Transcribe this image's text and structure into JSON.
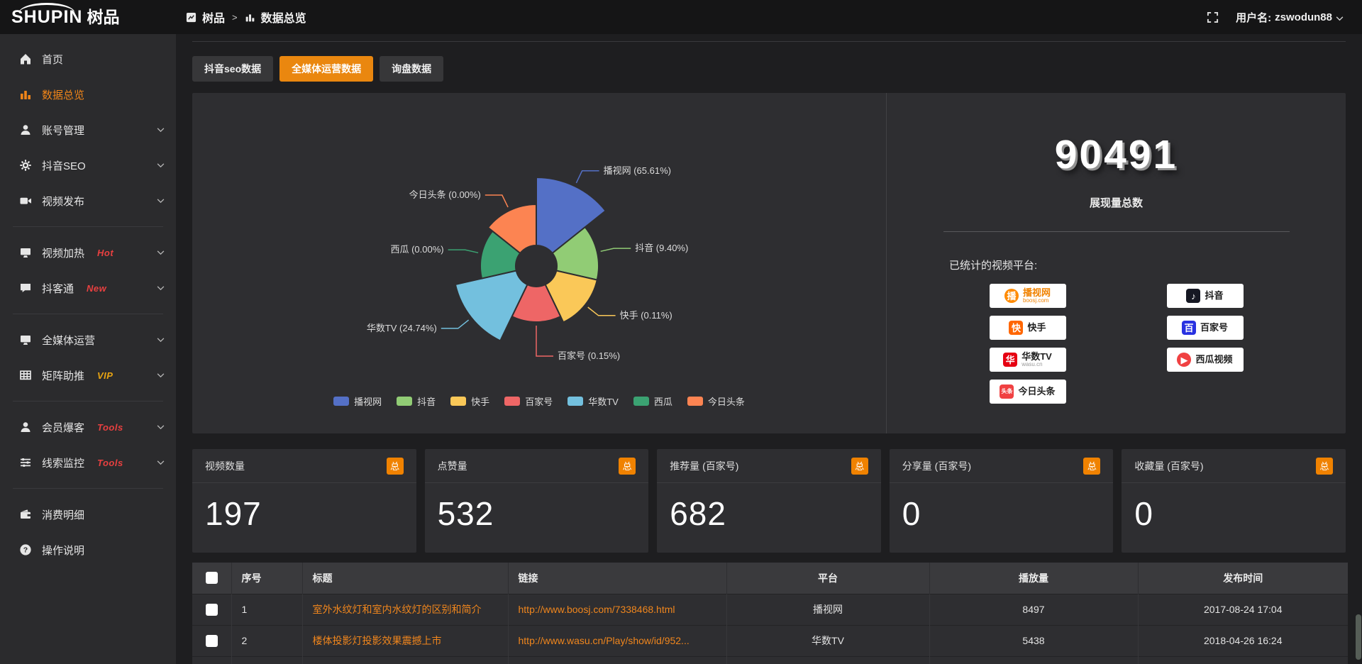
{
  "colors": {
    "accent": "#ea870f",
    "link_orange": "#f0861d",
    "badge_red": "#e84040",
    "badge_gold": "#e8a412",
    "panel_bg": "#2e2e31"
  },
  "topbar": {
    "logo": {
      "latin": "SHUPIN",
      "cn": "树品"
    },
    "breadcrumb": {
      "root": "树品",
      "separator": ">",
      "current": "数据总览"
    },
    "user": {
      "prefix": "用户名:",
      "name": "zswodun88"
    }
  },
  "sidebar": {
    "items": [
      {
        "key": "home",
        "icon": "home",
        "label": "首页",
        "active": false,
        "chevron": false,
        "badge": "",
        "badge_style": "",
        "divider_after": false
      },
      {
        "key": "data-overview",
        "icon": "chart",
        "label": "数据总览",
        "active": true,
        "chevron": false,
        "badge": "",
        "badge_style": "",
        "divider_after": false
      },
      {
        "key": "account-manage",
        "icon": "user",
        "label": "账号管理",
        "active": false,
        "chevron": true,
        "badge": "",
        "badge_style": "",
        "divider_after": false
      },
      {
        "key": "douyin-seo",
        "icon": "gear",
        "label": "抖音SEO",
        "active": false,
        "chevron": true,
        "badge": "",
        "badge_style": "",
        "divider_after": false
      },
      {
        "key": "video-publish",
        "icon": "video",
        "label": "视频发布",
        "active": false,
        "chevron": true,
        "badge": "",
        "badge_style": "",
        "divider_after": true
      },
      {
        "key": "video-boost",
        "icon": "monitor",
        "label": "视频加热",
        "active": false,
        "chevron": true,
        "badge": "Hot",
        "badge_style": "red",
        "divider_after": false
      },
      {
        "key": "douketong",
        "icon": "chat",
        "label": "抖客通",
        "active": false,
        "chevron": true,
        "badge": "New",
        "badge_style": "red",
        "divider_after": true
      },
      {
        "key": "omni-media",
        "icon": "monitor",
        "label": "全媒体运营",
        "active": false,
        "chevron": true,
        "badge": "",
        "badge_style": "",
        "divider_after": false
      },
      {
        "key": "matrix-assist",
        "icon": "grid",
        "label": "矩阵助推",
        "active": false,
        "chevron": true,
        "badge": "VIP",
        "badge_style": "gold",
        "divider_after": true
      },
      {
        "key": "member-baoke",
        "icon": "user",
        "label": "会员爆客",
        "active": false,
        "chevron": true,
        "badge": "Tools",
        "badge_style": "red",
        "divider_after": false
      },
      {
        "key": "lead-monitor",
        "icon": "sliders",
        "label": "线索监控",
        "active": false,
        "chevron": true,
        "badge": "Tools",
        "badge_style": "red",
        "divider_after": true
      },
      {
        "key": "consume-detail",
        "icon": "wallet",
        "label": "消费明细",
        "active": false,
        "chevron": false,
        "badge": "",
        "badge_style": "",
        "divider_after": false
      },
      {
        "key": "operation-guide",
        "icon": "question",
        "label": "操作说明",
        "active": false,
        "chevron": false,
        "badge": "",
        "badge_style": "",
        "divider_after": false
      }
    ]
  },
  "tabs": [
    {
      "key": "douyin-seo-data",
      "label": "抖音seo数据",
      "active": false
    },
    {
      "key": "omni-media-data",
      "label": "全媒体运营数据",
      "active": true
    },
    {
      "key": "inquiry-data",
      "label": "询盘数据",
      "active": false
    }
  ],
  "chart_data": {
    "type": "pie",
    "variant": "nightingale-rose",
    "unit": "%",
    "label_format": "{name} ({value}%)",
    "legend_position": "bottom",
    "inner_radius_px": 29,
    "items": [
      {
        "name": "播视网",
        "value": 65.61,
        "color": "#5470c6",
        "radius_px": 125
      },
      {
        "name": "抖音",
        "value": 9.4,
        "color": "#91cc75",
        "radius_px": 88
      },
      {
        "name": "快手",
        "value": 0.11,
        "color": "#fac858",
        "radius_px": 88
      },
      {
        "name": "百家号",
        "value": 0.15,
        "color": "#ee6666",
        "radius_px": 79
      },
      {
        "name": "华数TV",
        "value": 24.74,
        "color": "#73c0de",
        "radius_px": 117
      },
      {
        "name": "西瓜",
        "value": 0.0,
        "color": "#3ba272",
        "radius_px": 79
      },
      {
        "name": "今日头条",
        "value": 0.0,
        "color": "#fc8452",
        "radius_px": 87
      }
    ]
  },
  "summary": {
    "value": "90491",
    "label": "展现量总数",
    "platforms_title": "已统计的视频平台:",
    "platforms": [
      {
        "key": "boosj",
        "name": "播视网",
        "name_color": "#f08200",
        "sub": "boosj.com",
        "sub_color": "#f08200",
        "glyph": "播",
        "icon_bg": "#ff8a00",
        "icon_shape": "circle"
      },
      {
        "key": "douyin",
        "name": "抖音",
        "name_color": "#161616",
        "sub": "",
        "sub_color": "",
        "glyph": "♪",
        "icon_bg": "#161823",
        "icon_shape": "square"
      },
      {
        "key": "kuaishou",
        "name": "快手",
        "name_color": "#222222",
        "sub": "",
        "sub_color": "",
        "glyph": "快",
        "icon_bg": "#ff6600",
        "icon_shape": "square"
      },
      {
        "key": "baijiahao",
        "name": "百家号",
        "name_color": "#222222",
        "sub": "",
        "sub_color": "",
        "glyph": "百",
        "icon_bg": "#2932e1",
        "icon_shape": "square"
      },
      {
        "key": "wasu",
        "name": "华数TV",
        "name_color": "#222222",
        "sub": "wasu.cn",
        "sub_color": "#999999",
        "glyph": "华",
        "icon_bg": "#e60012",
        "icon_shape": "square"
      },
      {
        "key": "xigua",
        "name": "西瓜视频",
        "name_color": "#222222",
        "sub": "",
        "sub_color": "",
        "glyph": "▶",
        "icon_bg": "#f04142",
        "icon_shape": "circle"
      },
      {
        "key": "toutiao",
        "name": "今日头条",
        "name_color": "#222222",
        "sub": "",
        "sub_color": "",
        "glyph": "头条",
        "icon_bg": "#f04142",
        "icon_shape": "square"
      }
    ]
  },
  "stats_cards": [
    {
      "key": "video-count",
      "title": "视频数量",
      "badge": "总",
      "value": "197"
    },
    {
      "key": "like-count",
      "title": "点赞量",
      "badge": "总",
      "value": "532"
    },
    {
      "key": "recommend-count",
      "title": "推荐量 (百家号)",
      "badge": "总",
      "value": "682"
    },
    {
      "key": "share-count",
      "title": "分享量 (百家号)",
      "badge": "总",
      "value": "0"
    },
    {
      "key": "favorite-count",
      "title": "收藏量 (百家号)",
      "badge": "总",
      "value": "0"
    }
  ],
  "table": {
    "columns": [
      {
        "key": "checkbox",
        "label": ""
      },
      {
        "key": "index",
        "label": "序号"
      },
      {
        "key": "title",
        "label": "标题"
      },
      {
        "key": "link",
        "label": "链接"
      },
      {
        "key": "platform",
        "label": "平台"
      },
      {
        "key": "plays",
        "label": "播放量"
      },
      {
        "key": "time",
        "label": "发布时间"
      }
    ],
    "rows": [
      {
        "index": "1",
        "title": "室外水纹灯和室内水纹灯的区别和简介",
        "link": "http://www.boosj.com/7338468.html",
        "platform": "播视网",
        "plays": "8497",
        "time": "2017-08-24 17:04"
      },
      {
        "index": "2",
        "title": "楼体投影灯投影效果震撼上市",
        "link": "http://www.wasu.cn/Play/show/id/952...",
        "platform": "华数TV",
        "plays": "5438",
        "time": "2018-04-26 16:24"
      },
      {
        "index": "",
        "title": "",
        "link": "",
        "platform": "",
        "plays": "",
        "time": ""
      }
    ]
  }
}
